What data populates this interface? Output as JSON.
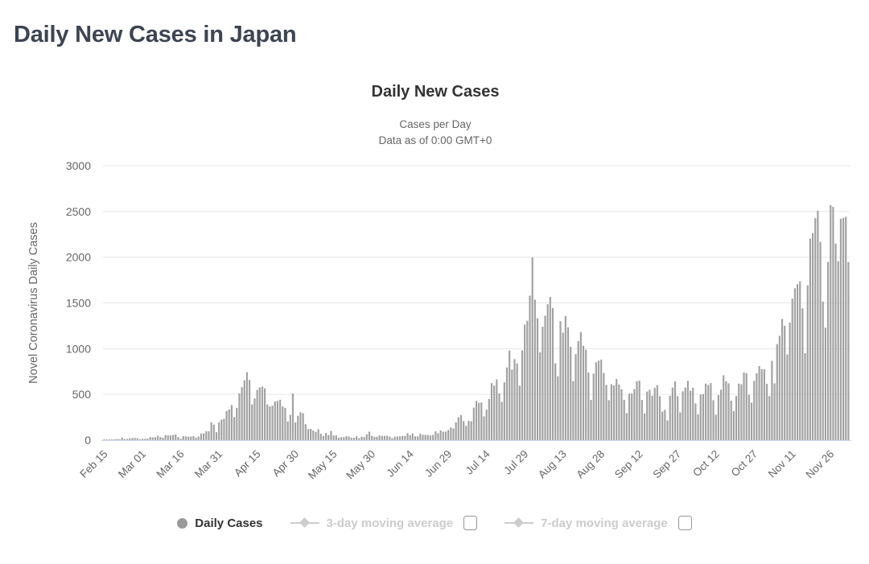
{
  "page": {
    "title": "Daily New Cases in Japan"
  },
  "colors": {
    "page_title": "#3d4452",
    "chart_title": "#333333",
    "subtitle": "#666666",
    "axis_label": "#666666",
    "bar": "#a1a1a1",
    "gridline": "#e7e7e7",
    "x_axis_line": "#ccd6eb",
    "legend_disabled": "#cccccc",
    "legend_marker": "#9a9a9a"
  },
  "chart_data": {
    "type": "bar",
    "title": "Daily New Cases",
    "subtitle_lines": [
      "Cases per Day",
      "Data as of 0:00 GMT+0"
    ],
    "ylabel": "Novel Coronavirus Daily Cases",
    "xlabel": "",
    "ylim": [
      0,
      3000
    ],
    "y_ticks": [
      0,
      500,
      1000,
      1500,
      2000,
      2500,
      3000
    ],
    "grid": "horizontal",
    "legend_position": "bottom",
    "series_name": "Daily Cases",
    "x_start": "Feb 15",
    "x_end": "Dec 3",
    "x_tick_interval_days": 15,
    "x_tick_indices": [
      0,
      15,
      30,
      45,
      60,
      75,
      90,
      105,
      120,
      135,
      150,
      165,
      180,
      195,
      210,
      225,
      240,
      255,
      270,
      285
    ],
    "x_tick_labels": [
      "Feb 15",
      "Mar 01",
      "Mar 16",
      "Mar 31",
      "Apr 15",
      "Apr 30",
      "May 15",
      "May 30",
      "Jun 14",
      "Jun 29",
      "Jul 14",
      "Jul 29",
      "Aug 13",
      "Aug 28",
      "Sep 12",
      "Sep 27",
      "Oct 12",
      "Oct 27",
      "Nov 11",
      "Nov 26"
    ],
    "values": [
      8,
      5,
      3,
      7,
      9,
      12,
      10,
      27,
      12,
      13,
      20,
      22,
      24,
      20,
      9,
      15,
      14,
      16,
      33,
      31,
      32,
      47,
      33,
      26,
      54,
      52,
      51,
      56,
      63,
      33,
      15,
      44,
      41,
      36,
      39,
      43,
      27,
      39,
      71,
      73,
      96,
      96,
      194,
      169,
      87,
      193,
      224,
      233,
      318,
      336,
      383,
      252,
      351,
      511,
      579,
      654,
      743,
      657,
      390,
      455,
      549,
      576,
      585,
      566,
      390,
      367,
      377,
      423,
      429,
      441,
      368,
      353,
      203,
      276,
      510,
      193,
      266,
      304,
      295,
      174,
      120,
      123,
      105,
      90,
      119,
      70,
      45,
      79,
      55,
      100,
      50,
      52,
      27,
      31,
      32,
      42,
      39,
      26,
      26,
      42,
      21,
      37,
      33,
      63,
      92,
      47,
      35,
      36,
      51,
      46,
      47,
      46,
      38,
      21,
      38,
      40,
      41,
      44,
      47,
      75,
      54,
      72,
      41,
      41,
      69,
      58,
      57,
      56,
      51,
      56,
      96,
      75,
      105,
      92,
      93,
      110,
      138,
      127,
      194,
      250,
      274,
      208,
      156,
      211,
      206,
      355,
      430,
      407,
      411,
      260,
      333,
      450,
      623,
      596,
      664,
      511,
      418,
      632,
      795,
      981,
      771,
      885,
      838,
      595,
      981,
      1264,
      1305,
      1580,
      1998,
      1536,
      1332,
      960,
      1239,
      1360,
      1486,
      1565,
      1444,
      840,
      698,
      1300,
      1176,
      1357,
      1233,
      1021,
      645,
      940,
      1083,
      1181,
      1032,
      988,
      740,
      439,
      727,
      851,
      869,
      880,
      734,
      604,
      437,
      611,
      598,
      668,
      608,
      556,
      439,
      295,
      508,
      510,
      558,
      644,
      650,
      440,
      291,
      531,
      550,
      485,
      571,
      601,
      480,
      312,
      331,
      216,
      485,
      575,
      641,
      481,
      303,
      533,
      575,
      648,
      539,
      573,
      401,
      281,
      497,
      503,
      618,
      604,
      624,
      436,
      278,
      492,
      551,
      708,
      644,
      621,
      431,
      316,
      482,
      617,
      611,
      739,
      732,
      496,
      410,
      648,
      731,
      809,
      777,
      774,
      614,
      481,
      867,
      620,
      1050,
      1141,
      1324,
      1250,
      936,
      1284,
      1547,
      1660,
      1705,
      1737,
      1441,
      950,
      1693,
      2203,
      2264,
      2427,
      2508,
      2168,
      1515,
      1229,
      1948,
      2570,
      2550,
      2149,
      1956,
      2420,
      2430,
      2442,
      1947
    ]
  },
  "legend": {
    "items": [
      {
        "label": "Daily Cases",
        "enabled": true,
        "marker": "circle",
        "checkbox": false
      },
      {
        "label": "3-day moving average",
        "enabled": false,
        "marker": "line-diamond",
        "checkbox": true,
        "checked": false
      },
      {
        "label": "7-day moving average",
        "enabled": false,
        "marker": "line-diamond",
        "checkbox": true,
        "checked": false
      }
    ]
  }
}
